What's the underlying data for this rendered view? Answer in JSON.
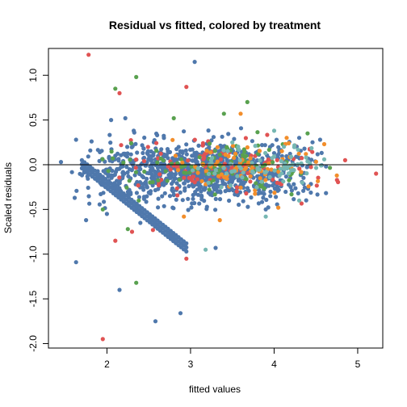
{
  "chart_data": {
    "type": "scatter",
    "title": "Residual vs fitted, colored by treatment",
    "xlabel": "fitted values",
    "ylabel": "Scaled residuals",
    "xlim": [
      1.3,
      5.3
    ],
    "ylim": [
      -2.05,
      1.3
    ],
    "xticks": [
      "2",
      "3",
      "4",
      "5"
    ],
    "yticks": [
      "-2.0",
      "-1.5",
      "-1.0",
      "-0.5",
      "0.0",
      "0.5",
      "1.0"
    ],
    "reference_line_y": 0,
    "grid": false,
    "legend": "none",
    "colors": [
      "#4f78ac",
      "#e05353",
      "#59a14f",
      "#f28e2b",
      "#76b7b2"
    ],
    "seed": 7,
    "band": {
      "color_index": 0,
      "start": [
        1.7,
        0.05
      ],
      "end": [
        2.95,
        -0.88
      ],
      "rows": [
        0,
        -0.045,
        -0.09
      ],
      "count": 40
    },
    "series": [
      {
        "color_index": 0,
        "count": 950,
        "x": [
          1.55,
          4.65
        ],
        "xmode": 3.2,
        "y": [
          -0.6,
          0.45
        ],
        "points": [
          [
            1.45,
            0.03
          ],
          [
            1.63,
            -1.09
          ],
          [
            1.8,
            0.16
          ],
          [
            2.1,
            0.1
          ],
          [
            2.15,
            -1.4
          ],
          [
            2.58,
            -1.75
          ],
          [
            2.88,
            -1.66
          ],
          [
            3.05,
            1.15
          ],
          [
            2.22,
            0.52
          ],
          [
            2.32,
            0.38
          ],
          [
            1.75,
            -0.62
          ],
          [
            2.0,
            -0.55
          ],
          [
            2.4,
            -0.65
          ],
          [
            2.6,
            0.33
          ],
          [
            3.3,
            -0.93
          ],
          [
            3.9,
            -0.5
          ],
          [
            4.3,
            0.3
          ],
          [
            4.55,
            0.28
          ],
          [
            1.63,
            0.28
          ],
          [
            2.05,
            0.5
          ]
        ]
      },
      {
        "color_index": 1,
        "count": 110,
        "x": [
          1.9,
          4.9
        ],
        "xmode": 3.2,
        "y": [
          -0.45,
          0.4
        ],
        "points": [
          [
            1.78,
            1.23
          ],
          [
            1.95,
            -1.95
          ],
          [
            2.95,
            0.87
          ],
          [
            2.95,
            -1.05
          ],
          [
            2.3,
            -0.75
          ],
          [
            2.1,
            -0.85
          ],
          [
            4.85,
            0.05
          ],
          [
            5.22,
            -0.1
          ],
          [
            2.15,
            0.8
          ],
          [
            2.55,
            -0.73
          ]
        ]
      },
      {
        "color_index": 2,
        "count": 100,
        "x": [
          1.9,
          4.7
        ],
        "xmode": 3.3,
        "y": [
          -0.45,
          0.4
        ],
        "points": [
          [
            2.35,
            -1.32
          ],
          [
            2.35,
            0.98
          ],
          [
            2.1,
            0.85
          ],
          [
            3.68,
            0.7
          ],
          [
            3.4,
            0.57
          ],
          [
            2.25,
            -0.72
          ],
          [
            2.8,
            0.52
          ],
          [
            2.38,
            -0.4
          ],
          [
            4.4,
            0.35
          ],
          [
            1.95,
            -0.5
          ]
        ]
      },
      {
        "color_index": 3,
        "count": 75,
        "x": [
          2.6,
          4.8
        ],
        "xmode": 3.6,
        "y": [
          -0.4,
          0.35
        ],
        "points": [
          [
            4.75,
            -0.12
          ],
          [
            4.6,
            0.23
          ],
          [
            3.35,
            -0.62
          ],
          [
            4.05,
            -0.48
          ],
          [
            4.38,
            0.12
          ],
          [
            3.6,
            0.57
          ],
          [
            2.92,
            -0.58
          ],
          [
            4.15,
            0.3
          ]
        ]
      },
      {
        "color_index": 4,
        "count": 75,
        "x": [
          2.9,
          4.6
        ],
        "xmode": 3.8,
        "y": [
          -0.35,
          0.35
        ],
        "points": [
          [
            3.18,
            -0.95
          ],
          [
            3.9,
            -0.58
          ],
          [
            4.3,
            -0.4
          ],
          [
            4.6,
            0.06
          ],
          [
            4.0,
            0.38
          ],
          [
            3.5,
            0.25
          ]
        ]
      }
    ]
  }
}
